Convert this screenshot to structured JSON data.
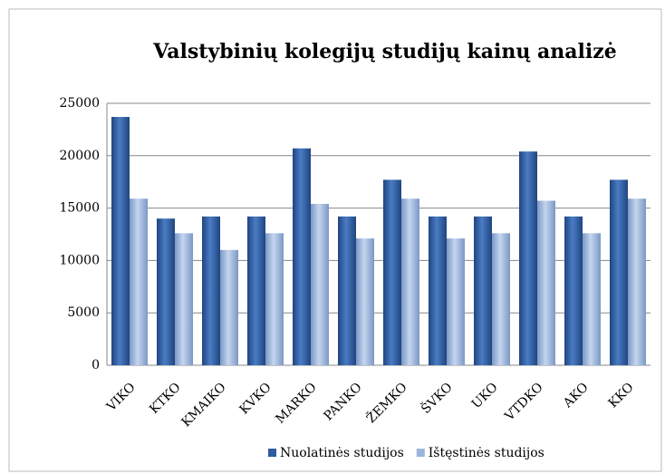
{
  "chart_data": {
    "type": "bar",
    "title": "Valstybinių kolegijų studijų kainų analizė",
    "categories": [
      "VIKO",
      "KTKO",
      "KMAIKO",
      "KVKO",
      "MARKO",
      "PANKO",
      "ŽEMKO",
      "ŠVKO",
      "UKO",
      "VTDKO",
      "AKO",
      "KKO"
    ],
    "series": [
      {
        "name": "Nuolatinės studijos",
        "color": "#2e5c9e",
        "values": [
          23700,
          14000,
          14200,
          14200,
          20700,
          14200,
          17700,
          14200,
          14200,
          20400,
          14200,
          17700
        ]
      },
      {
        "name": "Ištęstinės studijos",
        "color": "#9bb5db",
        "values": [
          15900,
          12600,
          11000,
          12600,
          15400,
          12100,
          15900,
          12100,
          12600,
          15700,
          12600,
          15900
        ]
      }
    ],
    "ylim": [
      0,
      25000
    ],
    "yticks": [
      0,
      5000,
      10000,
      15000,
      20000,
      25000
    ],
    "grid": true,
    "legend": "bottom"
  }
}
